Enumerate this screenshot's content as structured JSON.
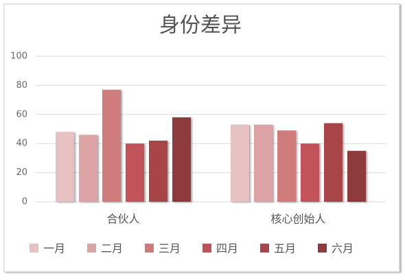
{
  "chart_data": {
    "type": "bar",
    "title": "身份差异",
    "categories": [
      "合伙人",
      "核心创始人"
    ],
    "series": [
      {
        "name": "一月",
        "color": "#e6c1c1",
        "values": [
          48,
          53
        ]
      },
      {
        "name": "二月",
        "color": "#dba3a3",
        "values": [
          46,
          53
        ]
      },
      {
        "name": "三月",
        "color": "#cf7b7b",
        "values": [
          77,
          49
        ]
      },
      {
        "name": "四月",
        "color": "#c2525a",
        "values": [
          40,
          40
        ]
      },
      {
        "name": "五月",
        "color": "#a84549",
        "values": [
          42,
          54
        ]
      },
      {
        "name": "六月",
        "color": "#8e3a3e",
        "values": [
          58,
          35
        ]
      }
    ],
    "ylim": [
      0,
      100
    ],
    "yticks": [
      0,
      20,
      40,
      60,
      80,
      100
    ],
    "grid": true,
    "legend": "bottom"
  }
}
